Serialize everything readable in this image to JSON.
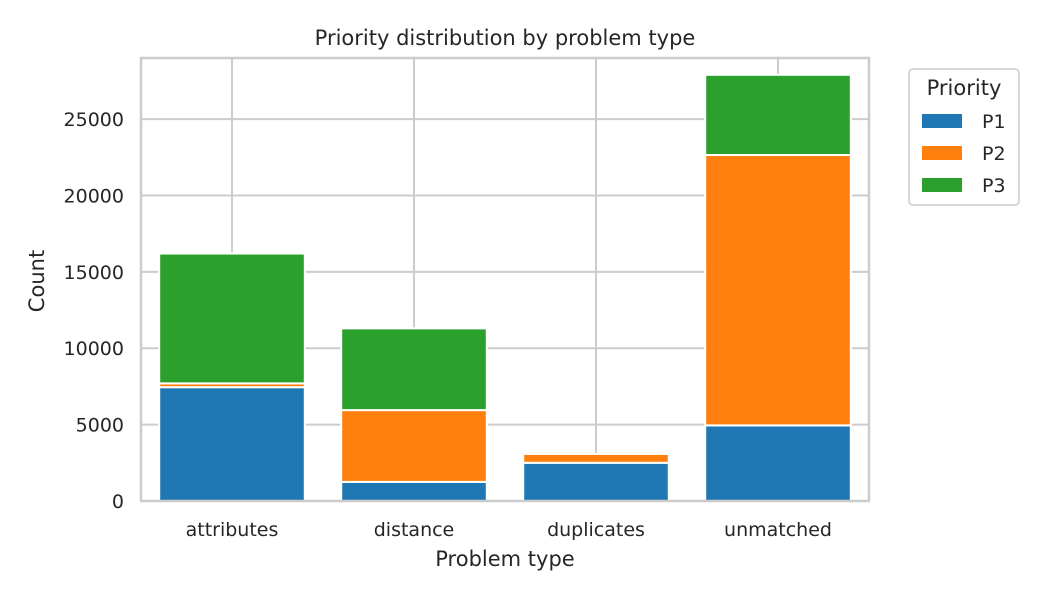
{
  "chart_data": {
    "type": "bar",
    "stacked": true,
    "title": "Priority distribution by problem type",
    "xlabel": "Problem type",
    "ylabel": "Count",
    "categories": [
      "attributes",
      "distance",
      "duplicates",
      "unmatched"
    ],
    "series": [
      {
        "name": "P1",
        "color": "#1f77b4",
        "values": [
          7450,
          1250,
          2500,
          4950
        ]
      },
      {
        "name": "P2",
        "color": "#ff7f0e",
        "values": [
          250,
          4700,
          580,
          17700
        ]
      },
      {
        "name": "P3",
        "color": "#2ca02c",
        "values": [
          8500,
          5350,
          0,
          5250
        ]
      }
    ],
    "ylim": [
      0,
      29000
    ],
    "yticks": [
      0,
      5000,
      10000,
      15000,
      20000,
      25000
    ],
    "grid": true,
    "legend": {
      "title": "Priority",
      "placement": "outside-upper-right"
    }
  }
}
